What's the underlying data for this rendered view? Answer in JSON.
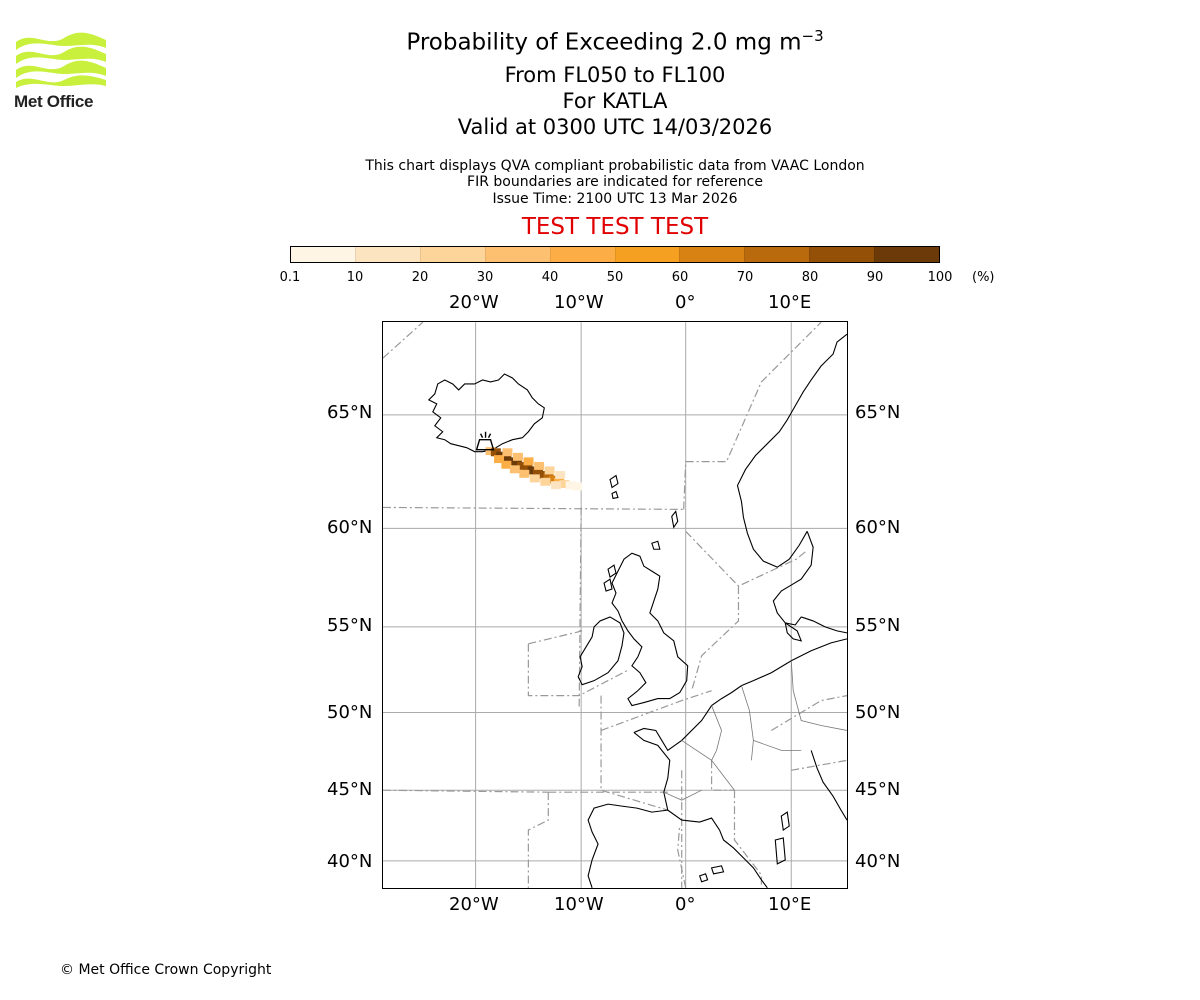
{
  "logo": {
    "name": "Met Office",
    "color": "#c8f03c"
  },
  "title": {
    "main": "Probability of Exceeding 2.0 mg m",
    "exponent": "−3"
  },
  "subtitle": {
    "levels": "From FL050 to FL100",
    "volcano": "For KATLA",
    "valid": "Valid at 0300 UTC 14/03/2026"
  },
  "notes": {
    "line1": "This chart displays QVA compliant probabilistic data from VAAC London",
    "line2": "FIR boundaries are indicated for reference",
    "line3": "Issue Time: 2100 UTC 13 Mar 2026"
  },
  "test_banner": "TEST TEST TEST",
  "colorbar": {
    "ticks": [
      "0.1",
      "10",
      "20",
      "30",
      "40",
      "50",
      "60",
      "70",
      "80",
      "90",
      "100"
    ],
    "unit": "(%)",
    "colors": [
      "#fff5e5",
      "#fde4c0",
      "#fdd49a",
      "#fdc070",
      "#fcad45",
      "#f5a020",
      "#d98214",
      "#b96a0c",
      "#955008",
      "#6b3a08"
    ]
  },
  "map": {
    "lon_labels": [
      "20°W",
      "10°W",
      "0°",
      "10°E"
    ],
    "lat_labels": [
      "65°N",
      "60°N",
      "55°N",
      "50°N",
      "45°N",
      "40°N"
    ],
    "volcano_name": "KATLA"
  },
  "chart_data": {
    "type": "heatmap",
    "title": "Probability of Exceeding 2.0 mg m−3",
    "lon_range": [
      -29,
      15
    ],
    "lat_range": [
      38.5,
      70
    ],
    "volcano": {
      "name": "KATLA",
      "lon": -19.1,
      "lat": 63.6
    },
    "plume_cells": [
      {
        "lon": -18.8,
        "lat": 63.4,
        "p": 35
      },
      {
        "lon": -18.3,
        "lat": 63.35,
        "p": 85
      },
      {
        "lon": -17.8,
        "lat": 63.2,
        "p": 95
      },
      {
        "lon": -17.3,
        "lat": 63.05,
        "p": 90
      },
      {
        "lon": -16.8,
        "lat": 62.95,
        "p": 92
      },
      {
        "lon": -16.3,
        "lat": 62.85,
        "p": 90
      },
      {
        "lon": -15.8,
        "lat": 62.75,
        "p": 88
      },
      {
        "lon": -15.3,
        "lat": 62.65,
        "p": 85
      },
      {
        "lon": -14.8,
        "lat": 62.55,
        "p": 90
      },
      {
        "lon": -14.3,
        "lat": 62.45,
        "p": 85
      },
      {
        "lon": -13.8,
        "lat": 62.35,
        "p": 80
      },
      {
        "lon": -13.3,
        "lat": 62.25,
        "p": 75
      },
      {
        "lon": -12.8,
        "lat": 62.15,
        "p": 60
      },
      {
        "lon": -12.3,
        "lat": 62.05,
        "p": 40
      },
      {
        "lon": -11.8,
        "lat": 61.95,
        "p": 20
      },
      {
        "lon": -11.2,
        "lat": 61.9,
        "p": 8
      },
      {
        "lon": -10.6,
        "lat": 61.85,
        "p": 3
      },
      {
        "lon": -18.0,
        "lat": 63.05,
        "p": 45
      },
      {
        "lon": -17.3,
        "lat": 62.8,
        "p": 40
      },
      {
        "lon": -16.5,
        "lat": 62.6,
        "p": 35
      },
      {
        "lon": -15.6,
        "lat": 62.4,
        "p": 30
      },
      {
        "lon": -14.6,
        "lat": 62.2,
        "p": 25
      },
      {
        "lon": -13.6,
        "lat": 62.05,
        "p": 20
      },
      {
        "lon": -12.6,
        "lat": 61.9,
        "p": 12
      },
      {
        "lon": -17.2,
        "lat": 63.35,
        "p": 30
      },
      {
        "lon": -16.2,
        "lat": 63.15,
        "p": 35
      },
      {
        "lon": -15.2,
        "lat": 62.95,
        "p": 40
      },
      {
        "lon": -14.2,
        "lat": 62.75,
        "p": 30
      },
      {
        "lon": -13.2,
        "lat": 62.55,
        "p": 20
      },
      {
        "lon": -12.2,
        "lat": 62.35,
        "p": 10
      }
    ]
  },
  "copyright": "© Met Office Crown Copyright"
}
